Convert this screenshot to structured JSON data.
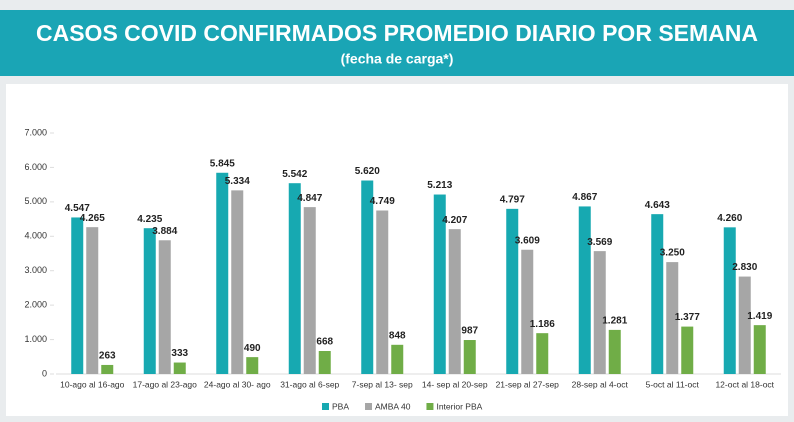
{
  "chart_data": {
    "type": "bar",
    "title": "CASOS COVID CONFIRMADOS PROMEDIO DIARIO POR SEMANA",
    "subtitle": "(fecha de carga*)",
    "categories": [
      "10-ago al 16-ago",
      "17-ago al 23-ago",
      "24-ago al 30- ago",
      "31-ago al 6-sep",
      "7-sep al 13- sep",
      "14- sep al 20-sep",
      "21-sep al 27-sep",
      "28-sep al 4-oct",
      "5-oct al 11-oct",
      "12-oct al 18-oct"
    ],
    "series": [
      {
        "name": "PBA",
        "color": "#17a9b1",
        "values": [
          4547,
          4235,
          5845,
          5542,
          5620,
          5213,
          4797,
          4867,
          4643,
          4260
        ],
        "value_labels": [
          "4.547",
          "4.235",
          "5.845",
          "5.542",
          "5.620",
          "5.213",
          "4.797",
          "4.867",
          "4.643",
          "4.260"
        ]
      },
      {
        "name": "AMBA 40",
        "color": "#a6a6a6",
        "values": [
          4265,
          3884,
          5334,
          4847,
          4749,
          4207,
          3609,
          3569,
          3250,
          2830
        ],
        "value_labels": [
          "4.265",
          "3.884",
          "5.334",
          "4.847",
          "4.749",
          "4.207",
          "3.609",
          "3.569",
          "3.250",
          "2.830"
        ]
      },
      {
        "name": "Interior PBA",
        "color": "#70ad47",
        "values": [
          263,
          333,
          490,
          668,
          848,
          987,
          1186,
          1281,
          1377,
          1419
        ],
        "value_labels": [
          "263",
          "333",
          "490",
          "668",
          "848",
          "987",
          "1.186",
          "1.281",
          "1.377",
          "1.419"
        ]
      }
    ],
    "ylim": [
      0,
      7000
    ],
    "yticks": [
      {
        "value": 0,
        "label": "0"
      },
      {
        "value": 1000,
        "label": "1.000"
      },
      {
        "value": 2000,
        "label": "2.000"
      },
      {
        "value": 3000,
        "label": "3.000"
      },
      {
        "value": 4000,
        "label": "4.000"
      },
      {
        "value": 5000,
        "label": "5.000"
      },
      {
        "value": 6000,
        "label": "6.000"
      },
      {
        "value": 7000,
        "label": "7.000"
      }
    ],
    "legend": "bottom"
  }
}
